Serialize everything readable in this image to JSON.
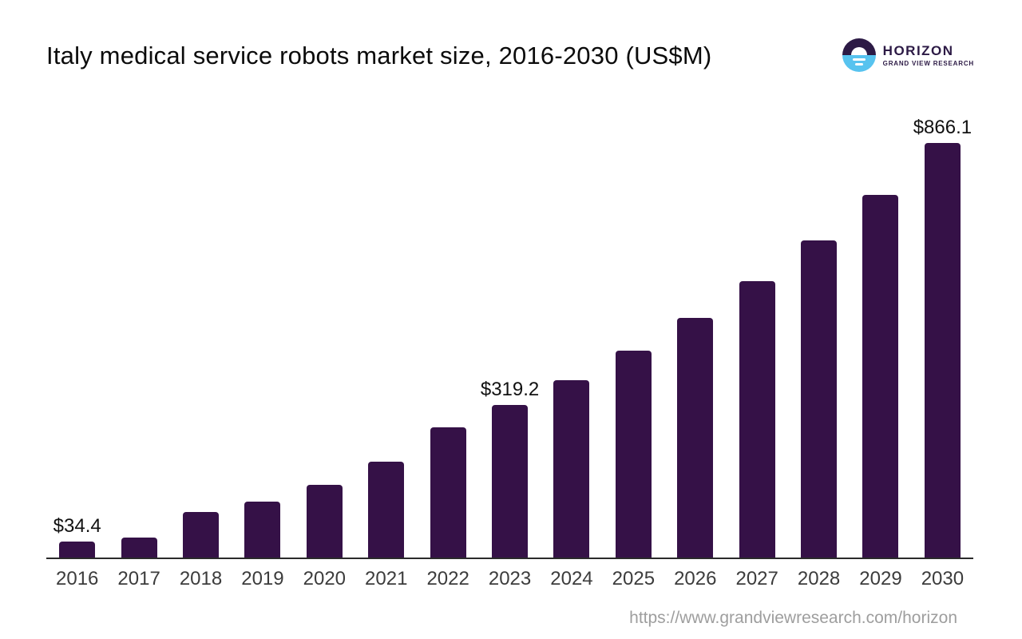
{
  "header": {
    "title": "Italy medical service robots market size, 2016-2030 (US$M)",
    "logo": {
      "name": "HORIZON",
      "subtitle": "GRAND VIEW RESEARCH"
    }
  },
  "footer": {
    "url": "https://www.grandviewresearch.com/horizon"
  },
  "colors": {
    "background": "#ffffff",
    "bar": "#351147",
    "axis_line": "#2b2b2b",
    "title_text": "#0b0b0b",
    "tick_text": "#3c3c3c",
    "data_label_text": "#111111",
    "url_text": "#9e9e9e",
    "logo_purple": "#2c1a45",
    "logo_blue": "#57c3ef"
  },
  "chart_data": {
    "type": "bar",
    "title": "Italy medical service robots market size, 2016-2030 (US$M)",
    "unit": "US$M",
    "xlabel": "",
    "ylabel": "",
    "categories": [
      "2016",
      "2017",
      "2018",
      "2019",
      "2020",
      "2021",
      "2022",
      "2023",
      "2024",
      "2025",
      "2026",
      "2027",
      "2028",
      "2029",
      "2030"
    ],
    "values": [
      34.4,
      43.2,
      96.5,
      118,
      153,
      201.5,
      273,
      319.2,
      372,
      433,
      501,
      578,
      663,
      758,
      866.1
    ],
    "labeled_values": {
      "2016": "$34.4",
      "2023": "$319.2",
      "2030": "$866.1"
    },
    "ylim": [
      0,
      900
    ],
    "grid": false,
    "legend": false,
    "bar_color": "#351147"
  }
}
